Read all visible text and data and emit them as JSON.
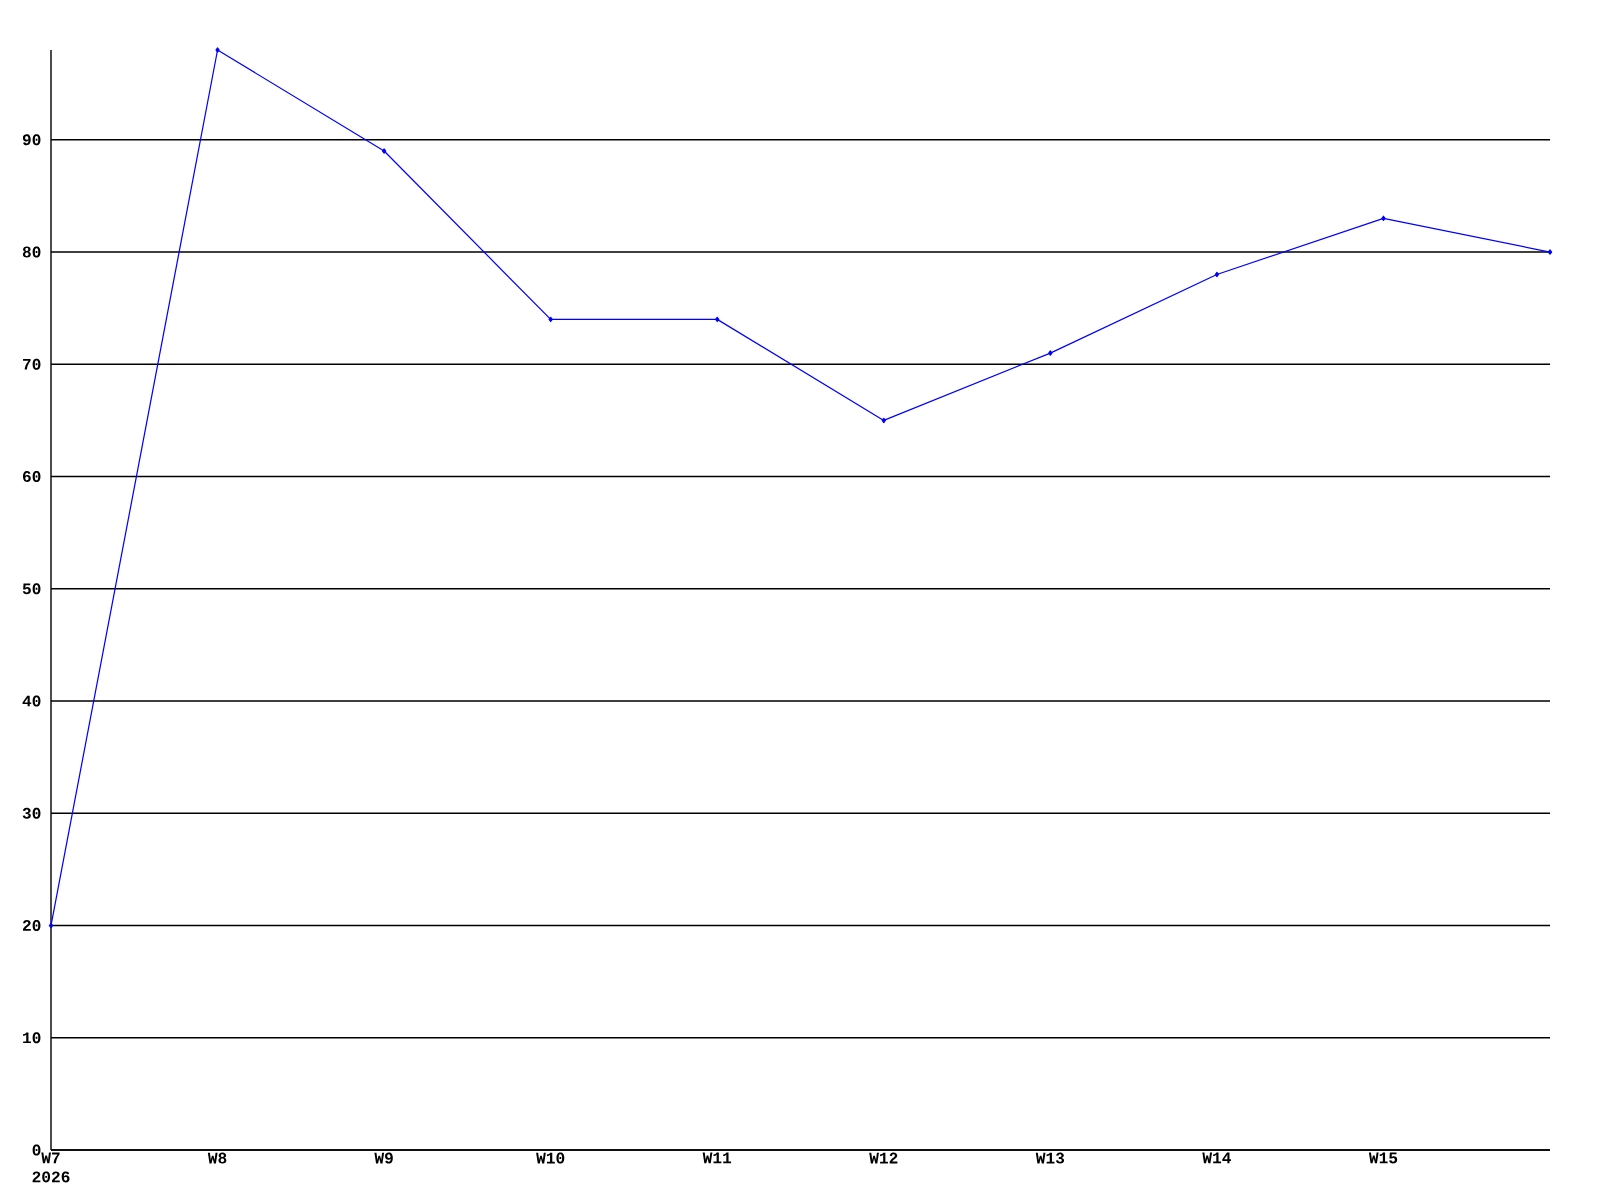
{
  "chart_data": {
    "type": "line",
    "categories": [
      "W7 2026",
      "W8",
      "W9",
      "W10",
      "W11",
      "W12",
      "W13",
      "W14",
      "W15",
      null
    ],
    "series": [
      {
        "color": "#0000ff",
        "values": [
          20,
          98,
          89,
          74,
          74,
          65,
          71,
          78,
          83,
          80
        ]
      }
    ],
    "ylim": [
      0,
      98
    ],
    "yticks": [
      0,
      10,
      20,
      30,
      40,
      50,
      60,
      70,
      80,
      90
    ],
    "grid": "y",
    "marker": "diamond",
    "line_style": "solid"
  }
}
